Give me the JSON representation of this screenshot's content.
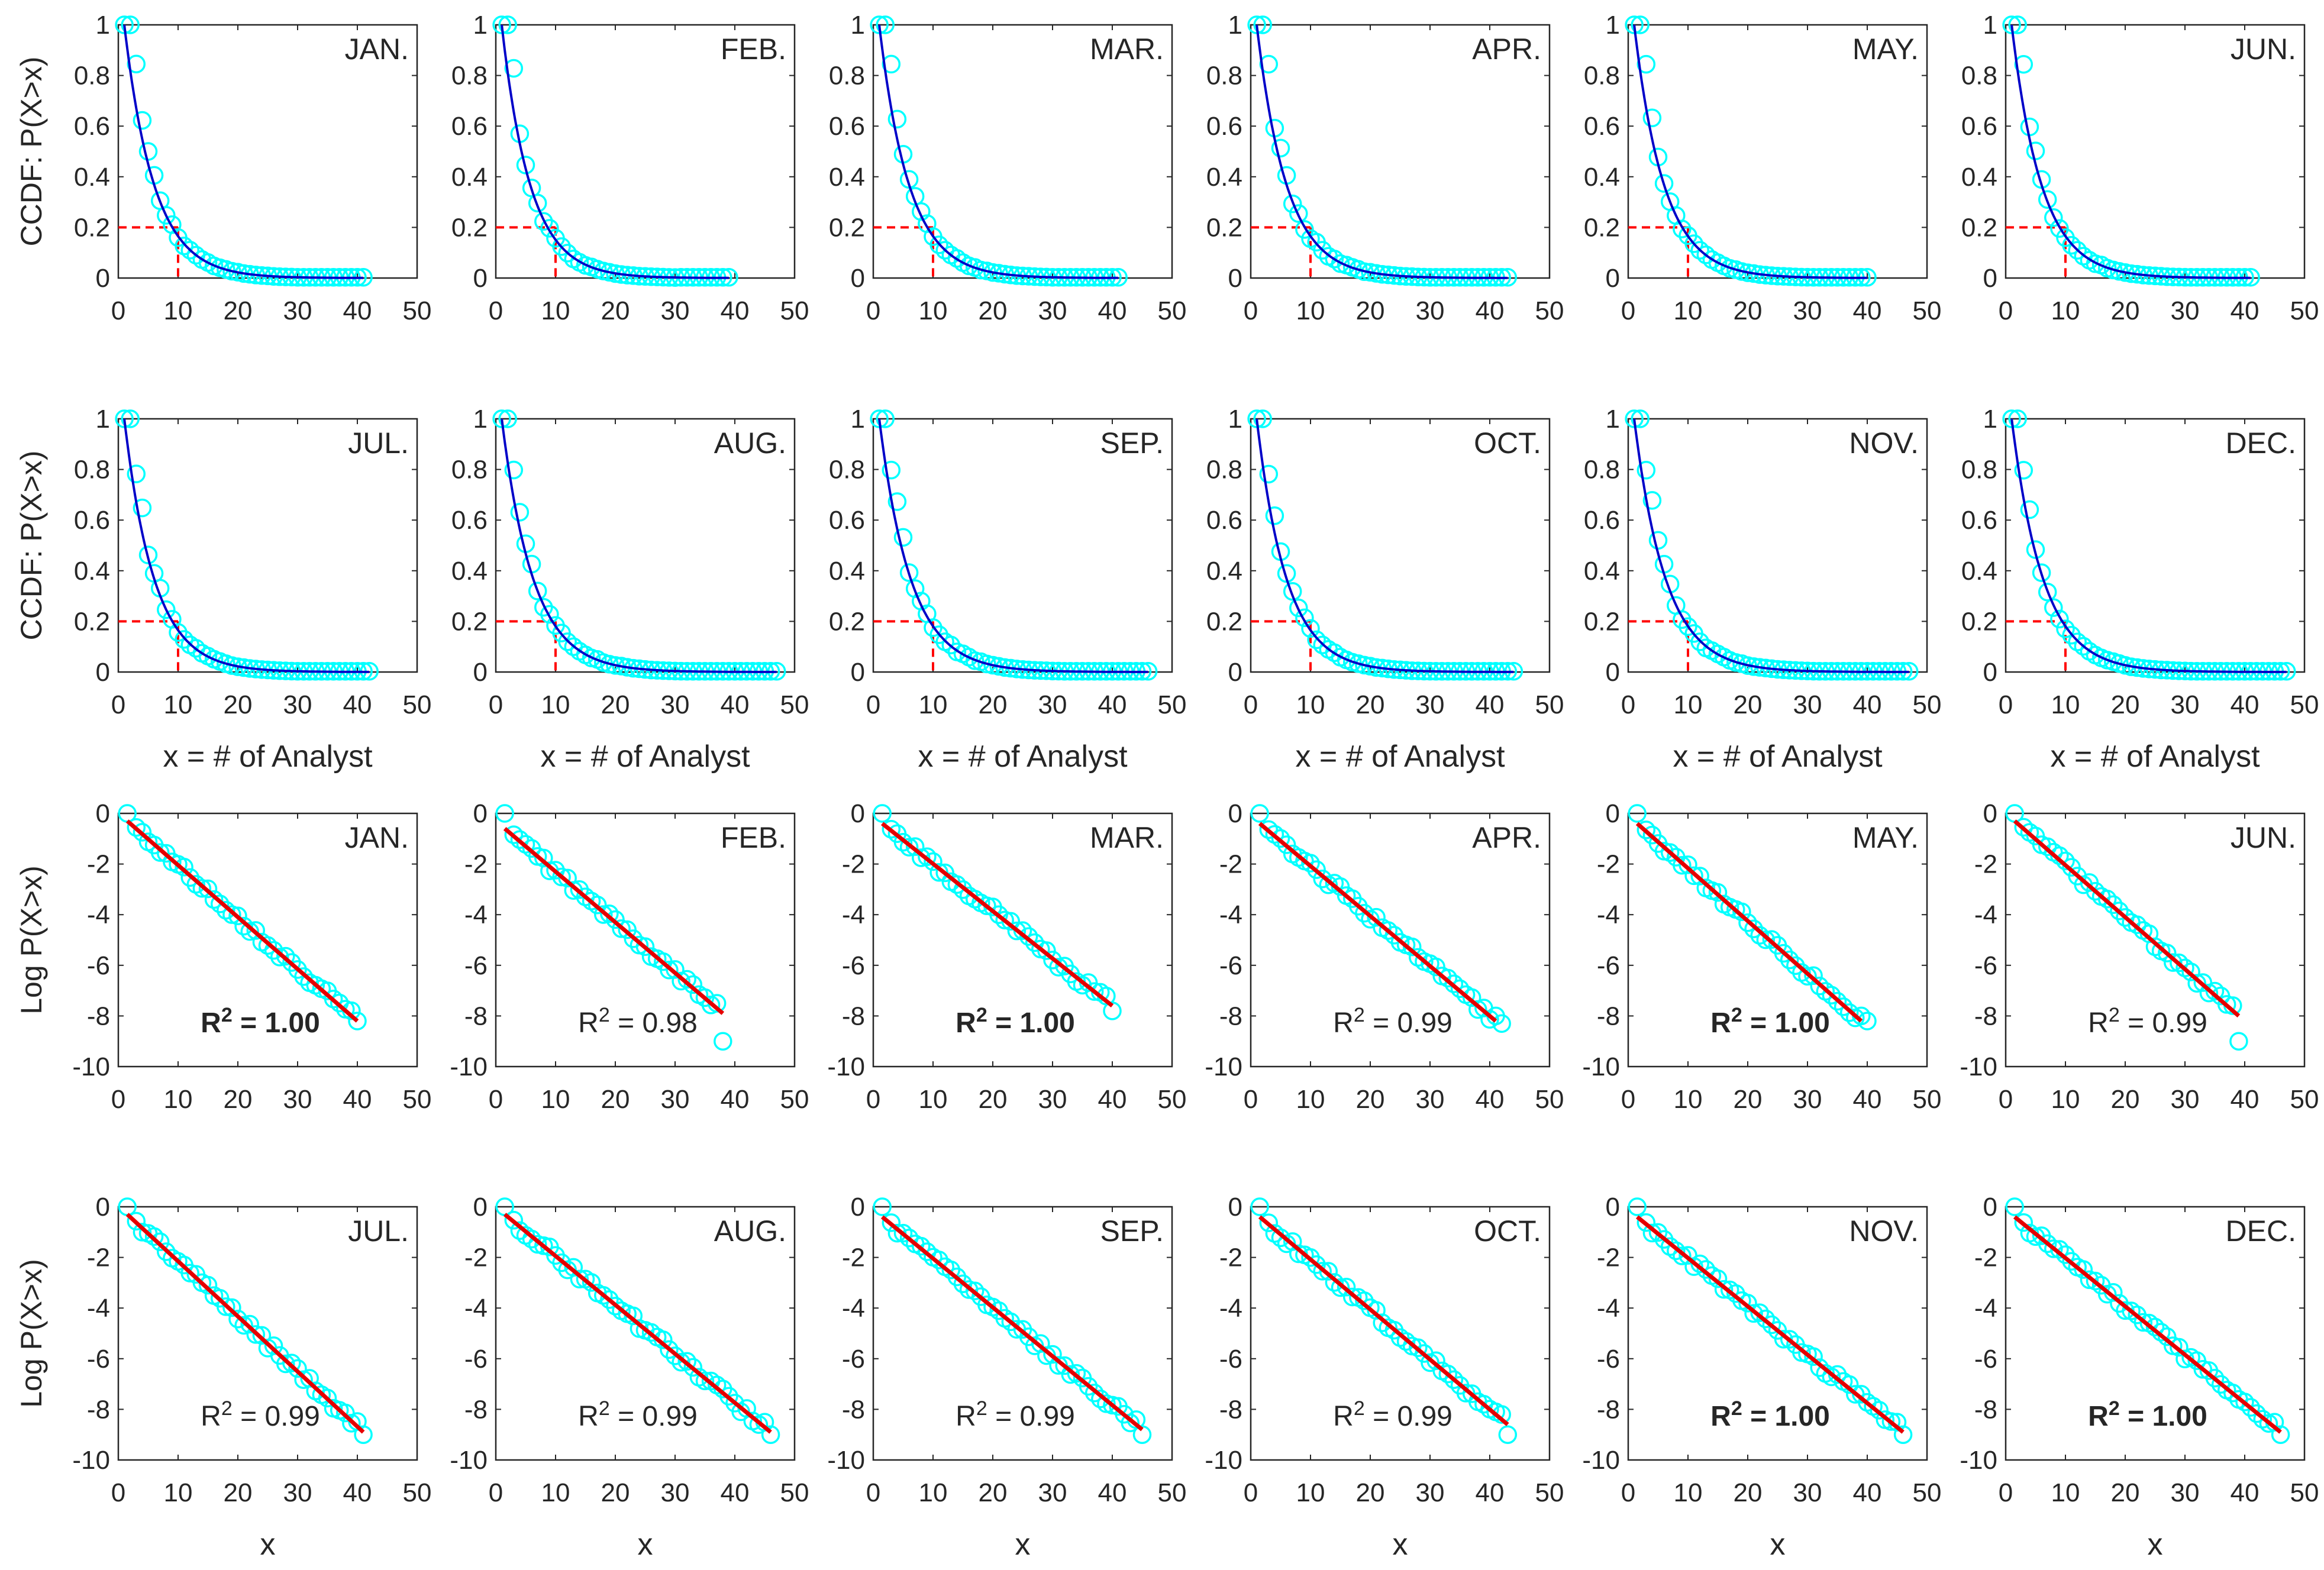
{
  "figure": {
    "description_free": true,
    "colors": {
      "axis": "#262626",
      "markers": "#00ffff",
      "ccdf_fit": "#0000c8",
      "log_fit": "#e60000",
      "threshold": "#ff0000",
      "background": "#ffffff"
    }
  },
  "chart_data": [
    {
      "type": "scatter",
      "group": "ccdf",
      "row": 1,
      "xlabel": "",
      "ylabel": "CCDF: P(X>x)",
      "xlim": [
        0,
        50
      ],
      "ylim": [
        0,
        1
      ],
      "xticks": [
        "0",
        "10",
        "20",
        "30",
        "40",
        "50"
      ],
      "yticks": [
        "0",
        "0.2",
        "0.4",
        "0.6",
        "0.8",
        "1"
      ],
      "fit": "exponential",
      "threshold": {
        "x": 10,
        "y": 0.2
      },
      "months": [
        {
          "label": "JAN.",
          "x_start": 1,
          "x_max": 41,
          "lambda": 0.2
        },
        {
          "label": "FEB.",
          "x_start": 1,
          "x_max": 39,
          "lambda": 0.21
        },
        {
          "label": "MAR.",
          "x_start": 1,
          "x_max": 41,
          "lambda": 0.2
        },
        {
          "label": "APR.",
          "x_start": 1,
          "x_max": 43,
          "lambda": 0.2
        },
        {
          "label": "MAY.",
          "x_start": 1,
          "x_max": 40,
          "lambda": 0.2
        },
        {
          "label": "JUN.",
          "x_start": 1,
          "x_max": 41,
          "lambda": 0.2
        }
      ]
    },
    {
      "type": "scatter",
      "group": "ccdf",
      "row": 2,
      "xlabel": "x = # of Analyst",
      "ylabel": "CCDF: P(X>x)",
      "xlim": [
        0,
        50
      ],
      "ylim": [
        0,
        1
      ],
      "xticks": [
        "0",
        "10",
        "20",
        "30",
        "40",
        "50"
      ],
      "yticks": [
        "0",
        "0.2",
        "0.4",
        "0.6",
        "0.8",
        "1"
      ],
      "fit": "exponential",
      "threshold": {
        "x": 10,
        "y": 0.2
      },
      "months": [
        {
          "label": "JUL.",
          "x_start": 1,
          "x_max": 42,
          "lambda": 0.2
        },
        {
          "label": "AUG.",
          "x_start": 1,
          "x_max": 47,
          "lambda": 0.19
        },
        {
          "label": "SEP.",
          "x_start": 1,
          "x_max": 46,
          "lambda": 0.19
        },
        {
          "label": "OCT.",
          "x_start": 1,
          "x_max": 44,
          "lambda": 0.2
        },
        {
          "label": "NOV.",
          "x_start": 1,
          "x_max": 47,
          "lambda": 0.19
        },
        {
          "label": "DEC.",
          "x_start": 1,
          "x_max": 47,
          "lambda": 0.19
        }
      ]
    },
    {
      "type": "scatter",
      "group": "log",
      "row": 3,
      "xlabel": "",
      "ylabel": "Log P(X>x)",
      "xlim": [
        0,
        50
      ],
      "ylim": [
        -10,
        0
      ],
      "xticks": [
        "0",
        "10",
        "20",
        "30",
        "40",
        "50"
      ],
      "yticks": [
        "-10",
        "-8",
        "-6",
        "-4",
        "-2",
        "0"
      ],
      "fit": "linear",
      "months": [
        {
          "label": "JAN.",
          "r2_text": "= 1.00",
          "r2_bold": true,
          "x_max": 40,
          "last_y": -8.2,
          "fit": [
            [
              1.5,
              -0.3
            ],
            [
              40,
              -8.2
            ]
          ]
        },
        {
          "label": "FEB.",
          "r2_text": "= 0.98",
          "r2_bold": false,
          "x_max": 38,
          "last_y": -9.0,
          "fit": [
            [
              1.5,
              -0.6
            ],
            [
              38,
              -7.9
            ]
          ]
        },
        {
          "label": "MAR.",
          "r2_text": "= 1.00",
          "r2_bold": true,
          "x_max": 40,
          "last_y": -7.8,
          "fit": [
            [
              1.5,
              -0.4
            ],
            [
              40,
              -7.6
            ]
          ]
        },
        {
          "label": "APR.",
          "r2_text": "= 0.99",
          "r2_bold": false,
          "x_max": 42,
          "last_y": -8.3,
          "fit": [
            [
              1.5,
              -0.4
            ],
            [
              41,
              -8.2
            ]
          ]
        },
        {
          "label": "MAY.",
          "r2_text": "= 1.00",
          "r2_bold": true,
          "x_max": 40,
          "last_y": -8.2,
          "fit": [
            [
              1.5,
              -0.4
            ],
            [
              39,
              -8.2
            ]
          ]
        },
        {
          "label": "JUN.",
          "r2_text": "= 0.99",
          "r2_bold": false,
          "x_max": 39,
          "last_y": -9.0,
          "fit": [
            [
              1.5,
              -0.3
            ],
            [
              39,
              -8.0
            ]
          ]
        }
      ]
    },
    {
      "type": "scatter",
      "group": "log",
      "row": 4,
      "xlabel": "x",
      "ylabel": "Log P(X>x)",
      "xlim": [
        0,
        50
      ],
      "ylim": [
        -10,
        0
      ],
      "xticks": [
        "0",
        "10",
        "20",
        "30",
        "40",
        "50"
      ],
      "yticks": [
        "-10",
        "-8",
        "-6",
        "-4",
        "-2",
        "0"
      ],
      "fit": "linear",
      "months": [
        {
          "label": "JUL.",
          "r2_text": "= 0.99",
          "r2_bold": false,
          "x_max": 41,
          "last_y": -9.0,
          "fit": [
            [
              1.5,
              -0.3
            ],
            [
              41,
              -8.9
            ]
          ]
        },
        {
          "label": "AUG.",
          "r2_text": "= 0.99",
          "r2_bold": false,
          "x_max": 46,
          "last_y": -9.0,
          "fit": [
            [
              1.5,
              -0.3
            ],
            [
              46,
              -8.9
            ]
          ]
        },
        {
          "label": "SEP.",
          "r2_text": "= 0.99",
          "r2_bold": false,
          "x_max": 45,
          "last_y": -9.0,
          "fit": [
            [
              1.5,
              -0.4
            ],
            [
              45,
              -8.8
            ]
          ]
        },
        {
          "label": "OCT.",
          "r2_text": "= 0.99",
          "r2_bold": false,
          "x_max": 43,
          "last_y": -9.0,
          "fit": [
            [
              1.5,
              -0.4
            ],
            [
              43,
              -8.6
            ]
          ]
        },
        {
          "label": "NOV.",
          "r2_text": "= 1.00",
          "r2_bold": true,
          "x_max": 46,
          "last_y": -9.0,
          "fit": [
            [
              1.5,
              -0.4
            ],
            [
              46,
              -8.9
            ]
          ]
        },
        {
          "label": "DEC.",
          "r2_text": "= 1.00",
          "r2_bold": true,
          "x_max": 46,
          "last_y": -9.0,
          "fit": [
            [
              1.5,
              -0.4
            ],
            [
              46,
              -8.9
            ]
          ]
        }
      ]
    }
  ]
}
